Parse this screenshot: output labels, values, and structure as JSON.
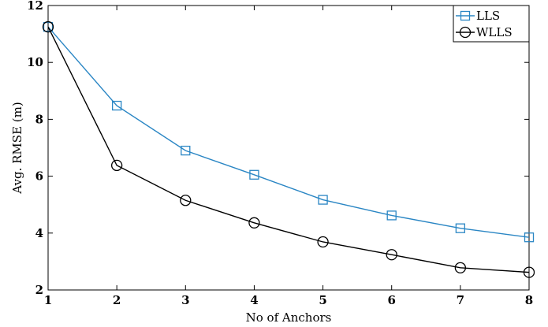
{
  "chart_data": {
    "type": "line",
    "xlabel": "No of Anchors",
    "ylabel": "Avg. RMSE (m)",
    "x": [
      1,
      2,
      3,
      4,
      5,
      6,
      7,
      8
    ],
    "xlim": [
      1,
      8
    ],
    "ylim": [
      2,
      12
    ],
    "xticks": [
      1,
      2,
      3,
      4,
      5,
      6,
      7,
      8
    ],
    "yticks": [
      2,
      4,
      6,
      8,
      10,
      12
    ],
    "grid": false,
    "legend_position": "top-right",
    "series": [
      {
        "name": "LLS",
        "marker": "square",
        "color": "#2a86c4",
        "values": [
          11.25,
          8.48,
          6.9,
          6.05,
          5.17,
          4.62,
          4.17,
          3.85
        ]
      },
      {
        "name": "WLLS",
        "marker": "circle",
        "color": "#000000",
        "values": [
          11.25,
          6.38,
          5.15,
          4.36,
          3.69,
          3.24,
          2.78,
          2.62
        ]
      }
    ]
  }
}
